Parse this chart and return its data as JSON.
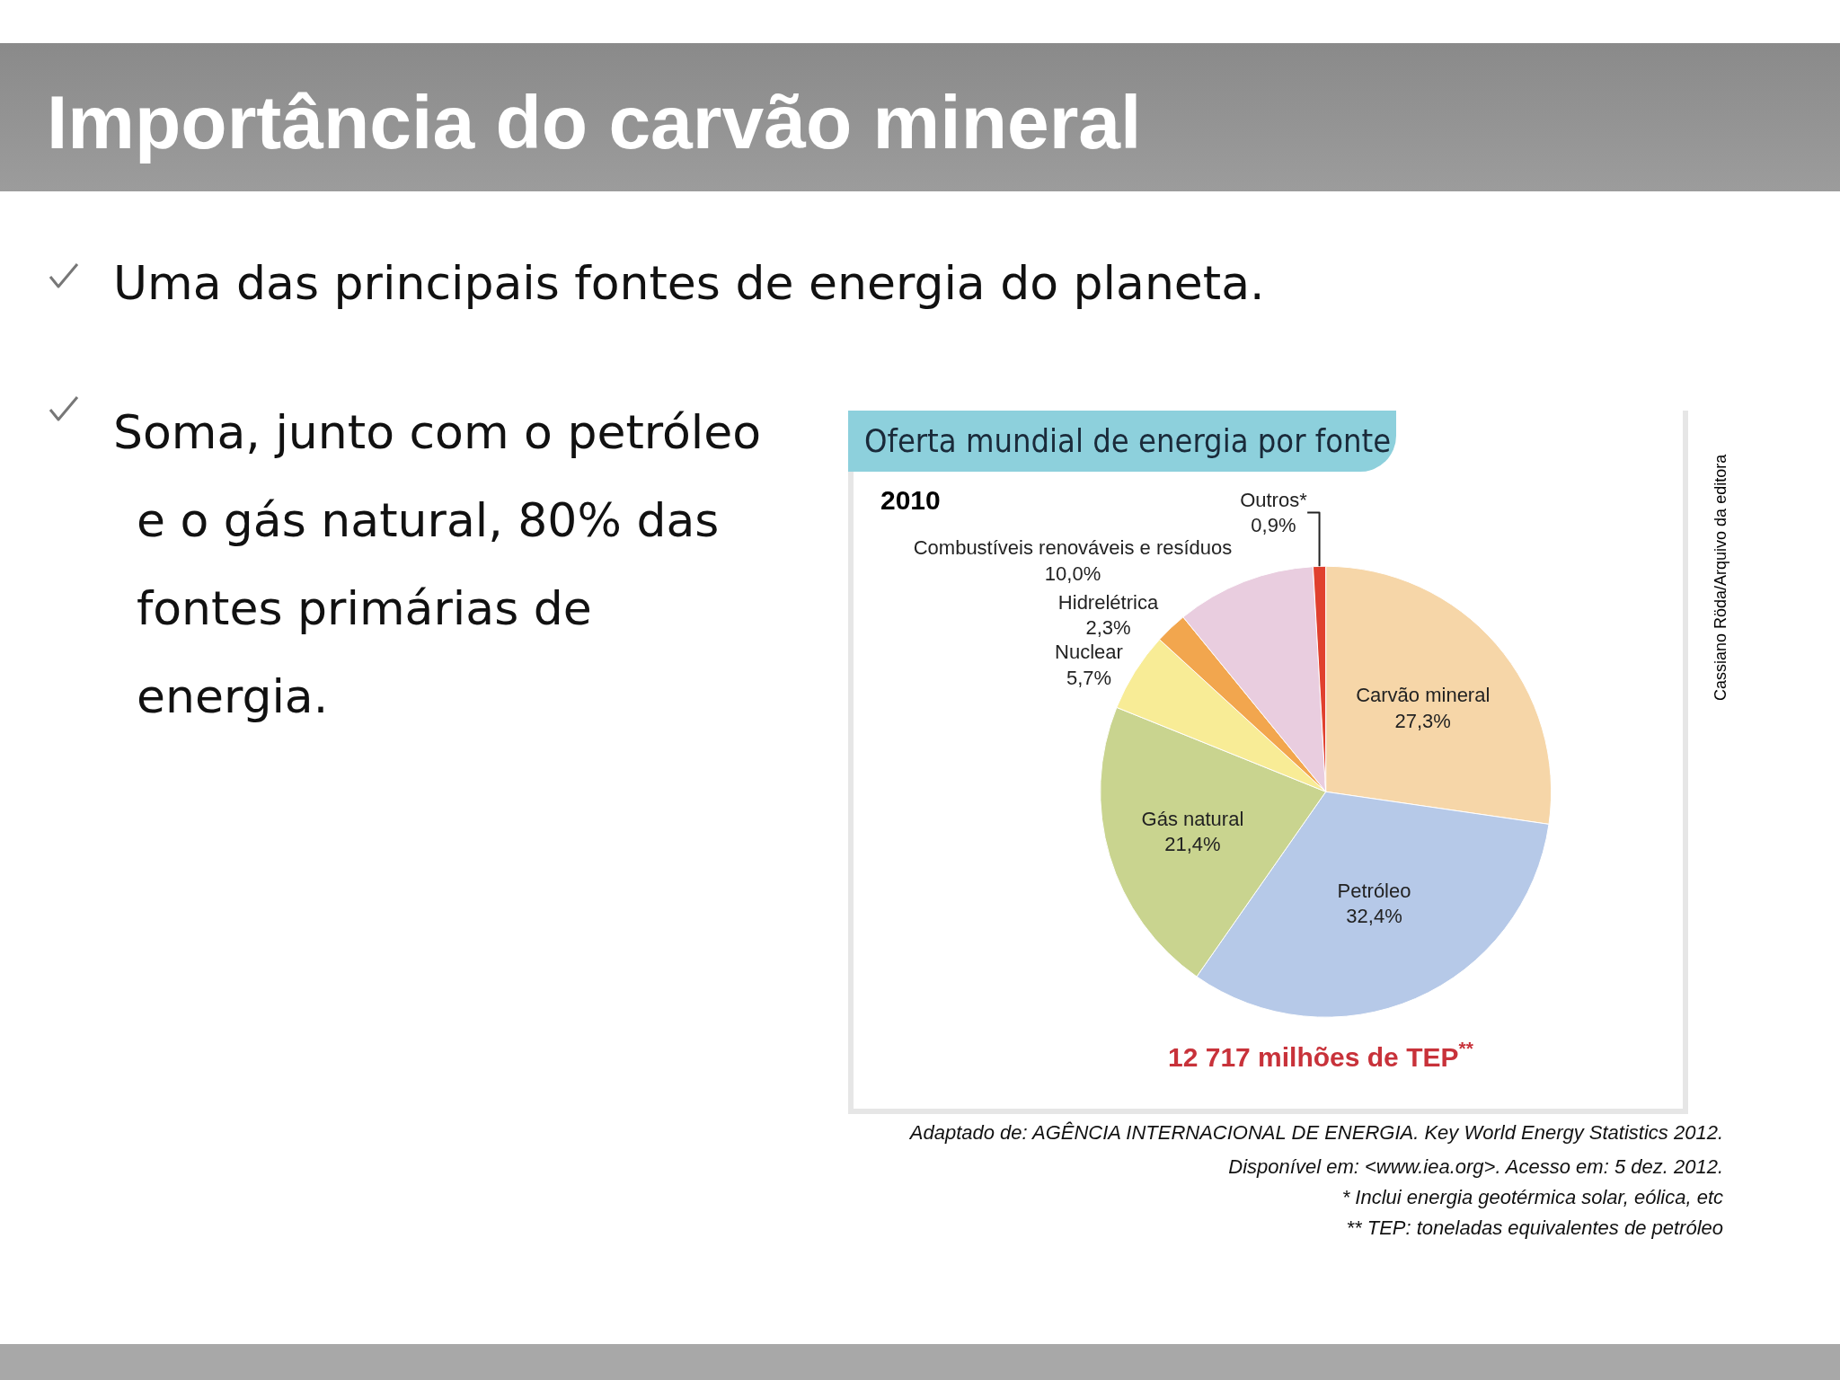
{
  "chart_data": {
    "type": "pie",
    "title": "Oferta mundial de energia por fonte",
    "subtitle": "2010",
    "categories": [
      "Carvão mineral",
      "Petróleo",
      "Gás natural",
      "Nuclear",
      "Hidrelétrica",
      "Combustíveis renováveis e resíduos",
      "Outros*"
    ],
    "values": [
      27.3,
      32.4,
      21.4,
      5.7,
      2.3,
      10.0,
      0.9
    ],
    "value_labels": [
      "27,3%",
      "32,4%",
      "21,4%",
      "5,7%",
      "2,3%",
      "10,0%",
      "0,9%"
    ],
    "colors": [
      "#f6d6a8",
      "#b6c9e8",
      "#c9d48f",
      "#f8ec96",
      "#f2a64e",
      "#e9cddf",
      "#e0402e"
    ],
    "legend": false,
    "annotations": [
      "Importância do carvão mineral",
      "Uma das principais fontes de energia do planeta.",
      "Soma, junto com o petróleo e o gás natural, 80% das fontes  primárias de  energia.",
      "12 717 milhões de TEP$^{**}$",
      "Adaptado de: AGÊNCIA INTERNACIONAL DE ENERGIA. Key World Energy Statistics 2012.",
      "Disponível em: <www.iea.org>. Acesso em: 5 dez. 2012.",
      "* Inclui energia geotérmica solar, eólica, etc",
      "** TEP: toneladas equivalentes de petróleo",
      "Cassiano Röda/Arquivo da editora"
    ]
  }
}
